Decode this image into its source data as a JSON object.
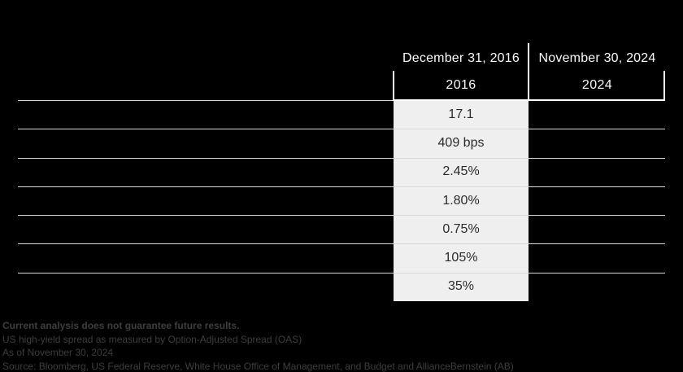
{
  "colors": {
    "background": "#000000",
    "highlight_column": "#efefef",
    "grid_line": "#d9d9d9",
    "header_rule": "#ffffff",
    "header_text": "#fafafa",
    "value_text": "#2b2b2b",
    "footnote_text": "#3e3e3e"
  },
  "table": {
    "columns": [
      {
        "date_header": "December 31, 2016",
        "year_header": "2016"
      },
      {
        "date_header": "November 30, 2024",
        "year_header": "2024"
      }
    ],
    "rows": [
      {
        "v2016": "17.1",
        "v2024": ""
      },
      {
        "v2016": "409 bps",
        "v2024": ""
      },
      {
        "v2016": "2.45%",
        "v2024": ""
      },
      {
        "v2016": "1.80%",
        "v2024": ""
      },
      {
        "v2016": "0.75%",
        "v2024": ""
      },
      {
        "v2016": "105%",
        "v2024": ""
      },
      {
        "v2016": "35%",
        "v2024": ""
      }
    ]
  },
  "footnotes": {
    "line1": "Current analysis does not guarantee future results.",
    "line2": "US high-yield spread as measured by Option-Adjusted Spread (OAS)",
    "line3": "As of November 30, 2024",
    "line4": "Source: Bloomberg, US Federal Reserve, White House Office of Management, and Budget and AllianceBernstein (AB)"
  },
  "chart_data": {
    "type": "table",
    "column_headers": [
      "December 31, 2016",
      "November 30, 2024"
    ],
    "column_subheaders": [
      "2016",
      "2024"
    ],
    "highlighted_column": "2016",
    "row_count": 7,
    "row_labels_visible": false,
    "series": [
      {
        "name": "2016",
        "values": [
          "17.1",
          "409 bps",
          "2.45%",
          "1.80%",
          "0.75%",
          "105%",
          "35%"
        ]
      },
      {
        "name": "2024",
        "values": [
          "",
          "",
          "",
          "",
          "",
          "",
          ""
        ]
      }
    ],
    "notes": [
      "Current analysis does not guarantee future results.",
      "US high-yield spread as measured by Option-Adjusted Spread (OAS)",
      "As of November 30, 2024",
      "Source: Bloomberg, US Federal Reserve, White House Office of Management, and Budget and AllianceBernstein (AB)"
    ]
  }
}
